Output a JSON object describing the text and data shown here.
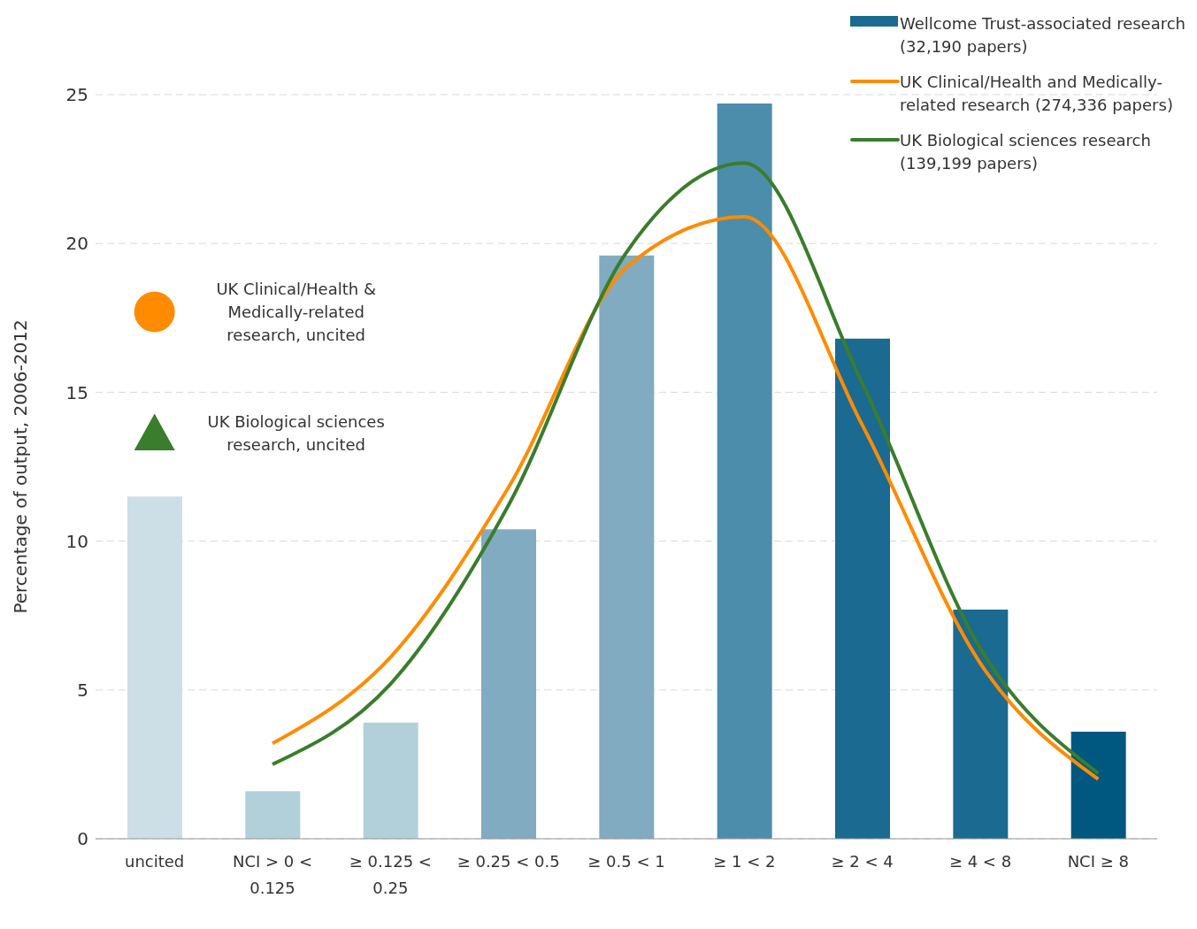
{
  "chart_data": {
    "type": "bar",
    "ylabel": "Percentage of output, 2006-2012",
    "categories": [
      "uncited",
      "NCI > 0 < 0.125",
      "≥ 0.125 < 0.25",
      "≥ 0.25 < 0.5",
      "≥ 0.5 < 1",
      "≥ 1 < 2",
      "≥ 2 < 4",
      "≥ 4 < 8",
      "NCI ≥ 8"
    ],
    "series": [
      {
        "name": "Wellcome Trust-associated research (32,190 papers)",
        "color": "#1b6a91",
        "colors": [
          "#ccdfe6",
          "#b2d0da",
          "#b2d0da",
          "#80abc1",
          "#80abc1",
          "#4d8dac",
          "#1b6a91",
          "#1b6a91",
          "#005880"
        ],
        "values": [
          11.5,
          1.6,
          3.9,
          10.4,
          19.6,
          24.7,
          16.8,
          7.7,
          3.6
        ]
      },
      {
        "type": "line",
        "name": "UK Clinical/Health and Medically-related research (274,336 papers)",
        "color": "#ff8c00",
        "values": [
          null,
          3.2,
          6.1,
          11.8,
          19.2,
          20.9,
          13.9,
          5.9,
          2.0
        ]
      },
      {
        "type": "line",
        "name": "UK Biological sciences research (139,199 papers)",
        "color": "#3a7d2c",
        "values": [
          null,
          2.5,
          5.2,
          11.2,
          19.7,
          22.7,
          15.3,
          6.4,
          2.2
        ]
      },
      {
        "type": "scatter",
        "name": "UK Clinical/Health & Medically-related research, uncited",
        "color": "#ff8c00",
        "marker": "circle",
        "x": [
          "uncited"
        ],
        "values": [
          17.7
        ]
      },
      {
        "type": "scatter",
        "name": "UK Biological sciences research, uncited",
        "color": "#3a7d2c",
        "marker": "triangle",
        "x": [
          "uncited"
        ],
        "values": [
          13.6
        ]
      }
    ],
    "ylim": [
      0,
      25
    ],
    "yticks": [
      0,
      5,
      10,
      15,
      20,
      25
    ],
    "grid": "y",
    "legend": "top right",
    "marker": "none",
    "line_style": "solid"
  }
}
